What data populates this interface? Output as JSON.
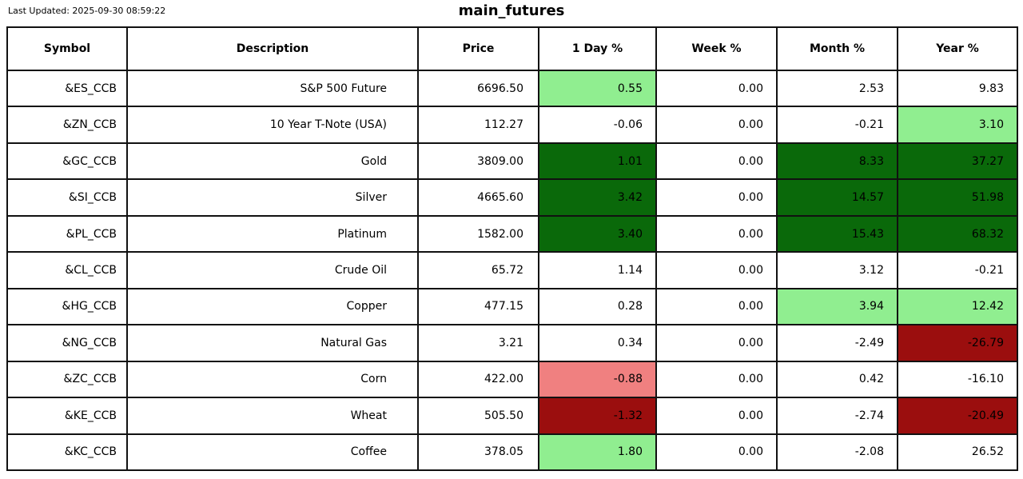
{
  "header": {
    "last_updated": "Last Updated: 2025-09-30 08:59:22",
    "title": "main_futures"
  },
  "colors": {
    "light_green": "#90EE90",
    "dark_green": "#0A690A",
    "light_red": "#F08080",
    "dark_red": "#9B0E0E",
    "border": "#111111",
    "background": "#FFFFFF",
    "text": "#000000"
  },
  "chart_data": {
    "type": "table",
    "title": "main_futures",
    "columns": [
      "Symbol",
      "Description",
      "Price",
      "1 Day %",
      "Week %",
      "Month %",
      "Year %"
    ],
    "rows": [
      {
        "symbol": "&ES_CCB",
        "description": "S&P 500 Future",
        "price": "6696.50",
        "pct": [
          {
            "value": "0.55",
            "bg": "light_green"
          },
          {
            "value": "0.00",
            "bg": "none"
          },
          {
            "value": "2.53",
            "bg": "none"
          },
          {
            "value": "9.83",
            "bg": "none"
          }
        ]
      },
      {
        "symbol": "&ZN_CCB",
        "description": "10 Year T-Note (USA)",
        "price": "112.27",
        "pct": [
          {
            "value": "-0.06",
            "bg": "none"
          },
          {
            "value": "0.00",
            "bg": "none"
          },
          {
            "value": "-0.21",
            "bg": "none"
          },
          {
            "value": "3.10",
            "bg": "light_green"
          }
        ]
      },
      {
        "symbol": "&GC_CCB",
        "description": "Gold",
        "price": "3809.00",
        "pct": [
          {
            "value": "1.01",
            "bg": "dark_green"
          },
          {
            "value": "0.00",
            "bg": "none"
          },
          {
            "value": "8.33",
            "bg": "dark_green"
          },
          {
            "value": "37.27",
            "bg": "dark_green"
          }
        ]
      },
      {
        "symbol": "&SI_CCB",
        "description": "Silver",
        "price": "4665.60",
        "pct": [
          {
            "value": "3.42",
            "bg": "dark_green"
          },
          {
            "value": "0.00",
            "bg": "none"
          },
          {
            "value": "14.57",
            "bg": "dark_green"
          },
          {
            "value": "51.98",
            "bg": "dark_green"
          }
        ]
      },
      {
        "symbol": "&PL_CCB",
        "description": "Platinum",
        "price": "1582.00",
        "pct": [
          {
            "value": "3.40",
            "bg": "dark_green"
          },
          {
            "value": "0.00",
            "bg": "none"
          },
          {
            "value": "15.43",
            "bg": "dark_green"
          },
          {
            "value": "68.32",
            "bg": "dark_green"
          }
        ]
      },
      {
        "symbol": "&CL_CCB",
        "description": "Crude Oil",
        "price": "65.72",
        "pct": [
          {
            "value": "1.14",
            "bg": "none"
          },
          {
            "value": "0.00",
            "bg": "none"
          },
          {
            "value": "3.12",
            "bg": "none"
          },
          {
            "value": "-0.21",
            "bg": "none"
          }
        ]
      },
      {
        "symbol": "&HG_CCB",
        "description": "Copper",
        "price": "477.15",
        "pct": [
          {
            "value": "0.28",
            "bg": "none"
          },
          {
            "value": "0.00",
            "bg": "none"
          },
          {
            "value": "3.94",
            "bg": "light_green"
          },
          {
            "value": "12.42",
            "bg": "light_green"
          }
        ]
      },
      {
        "symbol": "&NG_CCB",
        "description": "Natural Gas",
        "price": "3.21",
        "pct": [
          {
            "value": "0.34",
            "bg": "none"
          },
          {
            "value": "0.00",
            "bg": "none"
          },
          {
            "value": "-2.49",
            "bg": "none"
          },
          {
            "value": "-26.79",
            "bg": "dark_red"
          }
        ]
      },
      {
        "symbol": "&ZC_CCB",
        "description": "Corn",
        "price": "422.00",
        "pct": [
          {
            "value": "-0.88",
            "bg": "light_red"
          },
          {
            "value": "0.00",
            "bg": "none"
          },
          {
            "value": "0.42",
            "bg": "none"
          },
          {
            "value": "-16.10",
            "bg": "none"
          }
        ]
      },
      {
        "symbol": "&KE_CCB",
        "description": "Wheat",
        "price": "505.50",
        "pct": [
          {
            "value": "-1.32",
            "bg": "dark_red"
          },
          {
            "value": "0.00",
            "bg": "none"
          },
          {
            "value": "-2.74",
            "bg": "none"
          },
          {
            "value": "-20.49",
            "bg": "dark_red"
          }
        ]
      },
      {
        "symbol": "&KC_CCB",
        "description": "Coffee",
        "price": "378.05",
        "pct": [
          {
            "value": "1.80",
            "bg": "light_green"
          },
          {
            "value": "0.00",
            "bg": "none"
          },
          {
            "value": "-2.08",
            "bg": "none"
          },
          {
            "value": "26.52",
            "bg": "none"
          }
        ]
      }
    ]
  }
}
